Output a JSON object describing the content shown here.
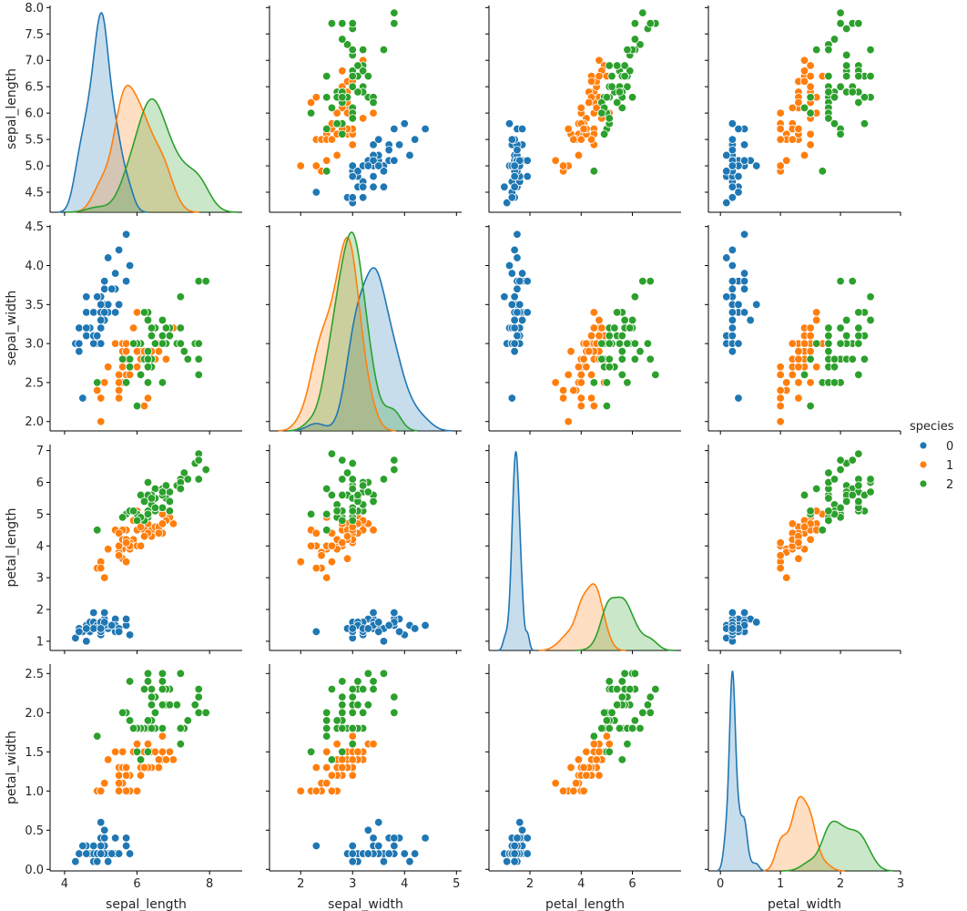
{
  "chart_data": {
    "type": "scatter",
    "title": "",
    "variables": [
      "sepal_length",
      "sepal_width",
      "petal_length",
      "petal_width"
    ],
    "hue": "species",
    "diag_kind": "kde",
    "grid": false,
    "legend": {
      "title": "species",
      "position": "right",
      "entries": [
        {
          "label": "0",
          "color": "#1f77b4"
        },
        {
          "label": "1",
          "color": "#ff7f0e"
        },
        {
          "label": "2",
          "color": "#2ca02c"
        }
      ]
    },
    "axes": {
      "sepal_length": {
        "label": "sepal_length",
        "lim": [
          3.6,
          8.9
        ],
        "ylim": [
          4.12,
          8.04
        ],
        "xticks": [
          "4",
          "6",
          "8"
        ],
        "xtick_values": [
          4,
          6,
          8
        ],
        "yticks": [
          "4.5",
          "5.0",
          "5.5",
          "6.0",
          "6.5",
          "7.0",
          "7.5",
          "8.0"
        ],
        "ytick_values": [
          4.5,
          5.0,
          5.5,
          6.0,
          6.5,
          7.0,
          7.5,
          8.0
        ]
      },
      "sepal_width": {
        "label": "sepal_width",
        "lim": [
          1.4,
          5.1
        ],
        "ylim": [
          1.88,
          4.52
        ],
        "xticks": [
          "2",
          "3",
          "4",
          "5"
        ],
        "xtick_values": [
          2,
          3,
          4,
          5
        ],
        "yticks": [
          "2.0",
          "2.5",
          "3.0",
          "3.5",
          "4.0",
          "4.5"
        ],
        "ytick_values": [
          2.0,
          2.5,
          3.0,
          3.5,
          4.0,
          4.5
        ]
      },
      "petal_length": {
        "label": "petal_length",
        "lim": [
          0.4,
          7.9
        ],
        "ylim": [
          0.71,
          7.19
        ],
        "xticks": [
          "2",
          "4",
          "6"
        ],
        "xtick_values": [
          2,
          4,
          6
        ],
        "yticks": [
          "1",
          "2",
          "3",
          "4",
          "5",
          "6",
          "7"
        ],
        "ytick_values": [
          1,
          2,
          3,
          4,
          5,
          6,
          7
        ]
      },
      "petal_width": {
        "label": "petal_width",
        "lim": [
          -0.2,
          3.0
        ],
        "ylim": [
          -0.02,
          2.62
        ],
        "xticks": [
          "0",
          "1",
          "2",
          "3"
        ],
        "xtick_values": [
          0,
          1,
          2,
          3
        ],
        "yticks": [
          "0.0",
          "0.5",
          "1.0",
          "1.5",
          "2.0",
          "2.5"
        ],
        "ytick_values": [
          0.0,
          0.5,
          1.0,
          1.5,
          2.0,
          2.5
        ]
      }
    },
    "points": [
      [
        5.1,
        3.5,
        1.4,
        0.2,
        0
      ],
      [
        4.9,
        3.0,
        1.4,
        0.2,
        0
      ],
      [
        4.7,
        3.2,
        1.3,
        0.2,
        0
      ],
      [
        4.6,
        3.1,
        1.5,
        0.2,
        0
      ],
      [
        5.0,
        3.6,
        1.4,
        0.2,
        0
      ],
      [
        5.4,
        3.9,
        1.7,
        0.4,
        0
      ],
      [
        4.6,
        3.4,
        1.4,
        0.3,
        0
      ],
      [
        5.0,
        3.4,
        1.5,
        0.2,
        0
      ],
      [
        4.4,
        2.9,
        1.4,
        0.2,
        0
      ],
      [
        4.9,
        3.1,
        1.5,
        0.1,
        0
      ],
      [
        5.4,
        3.7,
        1.5,
        0.2,
        0
      ],
      [
        4.8,
        3.4,
        1.6,
        0.2,
        0
      ],
      [
        4.8,
        3.0,
        1.4,
        0.1,
        0
      ],
      [
        4.3,
        3.0,
        1.1,
        0.1,
        0
      ],
      [
        5.8,
        4.0,
        1.2,
        0.2,
        0
      ],
      [
        5.7,
        4.4,
        1.5,
        0.4,
        0
      ],
      [
        5.4,
        3.9,
        1.3,
        0.4,
        0
      ],
      [
        5.1,
        3.5,
        1.4,
        0.3,
        0
      ],
      [
        5.7,
        3.8,
        1.7,
        0.3,
        0
      ],
      [
        5.1,
        3.8,
        1.5,
        0.3,
        0
      ],
      [
        5.4,
        3.4,
        1.7,
        0.2,
        0
      ],
      [
        5.1,
        3.7,
        1.5,
        0.4,
        0
      ],
      [
        4.6,
        3.6,
        1.0,
        0.2,
        0
      ],
      [
        5.1,
        3.3,
        1.7,
        0.5,
        0
      ],
      [
        4.8,
        3.4,
        1.9,
        0.2,
        0
      ],
      [
        5.0,
        3.0,
        1.6,
        0.2,
        0
      ],
      [
        5.0,
        3.4,
        1.6,
        0.4,
        0
      ],
      [
        5.2,
        3.5,
        1.5,
        0.2,
        0
      ],
      [
        5.2,
        3.4,
        1.4,
        0.2,
        0
      ],
      [
        4.7,
        3.2,
        1.6,
        0.2,
        0
      ],
      [
        4.8,
        3.1,
        1.6,
        0.2,
        0
      ],
      [
        5.4,
        3.4,
        1.5,
        0.4,
        0
      ],
      [
        5.2,
        4.1,
        1.5,
        0.1,
        0
      ],
      [
        5.5,
        4.2,
        1.4,
        0.2,
        0
      ],
      [
        4.9,
        3.1,
        1.5,
        0.2,
        0
      ],
      [
        5.0,
        3.2,
        1.2,
        0.2,
        0
      ],
      [
        5.5,
        3.5,
        1.3,
        0.2,
        0
      ],
      [
        4.9,
        3.6,
        1.4,
        0.1,
        0
      ],
      [
        4.4,
        3.0,
        1.3,
        0.2,
        0
      ],
      [
        5.1,
        3.4,
        1.5,
        0.2,
        0
      ],
      [
        5.0,
        3.5,
        1.3,
        0.3,
        0
      ],
      [
        4.5,
        2.3,
        1.3,
        0.3,
        0
      ],
      [
        4.4,
        3.2,
        1.3,
        0.2,
        0
      ],
      [
        5.0,
        3.5,
        1.6,
        0.6,
        0
      ],
      [
        5.1,
        3.8,
        1.9,
        0.4,
        0
      ],
      [
        4.8,
        3.0,
        1.4,
        0.3,
        0
      ],
      [
        5.1,
        3.8,
        1.6,
        0.2,
        0
      ],
      [
        4.6,
        3.2,
        1.4,
        0.2,
        0
      ],
      [
        5.3,
        3.7,
        1.5,
        0.2,
        0
      ],
      [
        5.0,
        3.3,
        1.4,
        0.2,
        0
      ],
      [
        7.0,
        3.2,
        4.7,
        1.4,
        1
      ],
      [
        6.4,
        3.2,
        4.5,
        1.5,
        1
      ],
      [
        6.9,
        3.1,
        4.9,
        1.5,
        1
      ],
      [
        5.5,
        2.3,
        4.0,
        1.3,
        1
      ],
      [
        6.5,
        2.8,
        4.6,
        1.5,
        1
      ],
      [
        5.7,
        2.8,
        4.5,
        1.3,
        1
      ],
      [
        6.3,
        3.3,
        4.7,
        1.6,
        1
      ],
      [
        4.9,
        2.4,
        3.3,
        1.0,
        1
      ],
      [
        6.6,
        2.9,
        4.6,
        1.3,
        1
      ],
      [
        5.2,
        2.7,
        3.9,
        1.4,
        1
      ],
      [
        5.0,
        2.0,
        3.5,
        1.0,
        1
      ],
      [
        5.9,
        3.0,
        4.2,
        1.5,
        1
      ],
      [
        6.0,
        2.2,
        4.0,
        1.0,
        1
      ],
      [
        6.1,
        2.9,
        4.7,
        1.4,
        1
      ],
      [
        5.6,
        2.9,
        3.6,
        1.3,
        1
      ],
      [
        6.7,
        3.1,
        4.4,
        1.4,
        1
      ],
      [
        5.6,
        3.0,
        4.5,
        1.5,
        1
      ],
      [
        5.8,
        2.7,
        4.1,
        1.0,
        1
      ],
      [
        6.2,
        2.2,
        4.5,
        1.5,
        1
      ],
      [
        5.6,
        2.5,
        3.9,
        1.1,
        1
      ],
      [
        5.9,
        3.2,
        4.8,
        1.8,
        1
      ],
      [
        6.1,
        2.8,
        4.0,
        1.3,
        1
      ],
      [
        6.3,
        2.5,
        4.9,
        1.5,
        1
      ],
      [
        6.1,
        2.8,
        4.7,
        1.2,
        1
      ],
      [
        6.4,
        2.9,
        4.3,
        1.3,
        1
      ],
      [
        6.6,
        3.0,
        4.4,
        1.4,
        1
      ],
      [
        6.8,
        2.8,
        4.8,
        1.4,
        1
      ],
      [
        6.7,
        3.0,
        5.0,
        1.7,
        1
      ],
      [
        6.0,
        2.9,
        4.5,
        1.5,
        1
      ],
      [
        5.7,
        2.6,
        3.5,
        1.0,
        1
      ],
      [
        5.5,
        2.4,
        3.8,
        1.1,
        1
      ],
      [
        5.5,
        2.4,
        3.7,
        1.0,
        1
      ],
      [
        5.8,
        2.7,
        3.9,
        1.2,
        1
      ],
      [
        6.0,
        2.7,
        5.1,
        1.6,
        1
      ],
      [
        5.4,
        3.0,
        4.5,
        1.5,
        1
      ],
      [
        6.0,
        3.4,
        4.5,
        1.6,
        1
      ],
      [
        6.7,
        3.1,
        4.7,
        1.5,
        1
      ],
      [
        6.3,
        2.3,
        4.4,
        1.3,
        1
      ],
      [
        5.6,
        3.0,
        4.1,
        1.3,
        1
      ],
      [
        5.5,
        2.5,
        4.0,
        1.3,
        1
      ],
      [
        5.5,
        2.6,
        4.4,
        1.2,
        1
      ],
      [
        6.1,
        3.0,
        4.6,
        1.4,
        1
      ],
      [
        5.8,
        2.6,
        4.0,
        1.2,
        1
      ],
      [
        5.0,
        2.3,
        3.3,
        1.0,
        1
      ],
      [
        5.6,
        2.7,
        4.2,
        1.3,
        1
      ],
      [
        5.7,
        3.0,
        4.2,
        1.2,
        1
      ],
      [
        5.7,
        2.9,
        4.2,
        1.3,
        1
      ],
      [
        6.2,
        2.9,
        4.3,
        1.3,
        1
      ],
      [
        5.1,
        2.5,
        3.0,
        1.1,
        1
      ],
      [
        5.7,
        2.8,
        4.1,
        1.3,
        1
      ],
      [
        6.3,
        3.3,
        6.0,
        2.5,
        2
      ],
      [
        5.8,
        2.7,
        5.1,
        1.9,
        2
      ],
      [
        7.1,
        3.0,
        5.9,
        2.1,
        2
      ],
      [
        6.3,
        2.9,
        5.6,
        1.8,
        2
      ],
      [
        6.5,
        3.0,
        5.8,
        2.2,
        2
      ],
      [
        7.6,
        3.0,
        6.6,
        2.1,
        2
      ],
      [
        4.9,
        2.5,
        4.5,
        1.7,
        2
      ],
      [
        7.3,
        2.9,
        6.3,
        1.8,
        2
      ],
      [
        6.7,
        2.5,
        5.8,
        1.8,
        2
      ],
      [
        7.2,
        3.6,
        6.1,
        2.5,
        2
      ],
      [
        6.5,
        3.2,
        5.1,
        2.0,
        2
      ],
      [
        6.4,
        2.7,
        5.3,
        1.9,
        2
      ],
      [
        6.8,
        3.0,
        5.5,
        2.1,
        2
      ],
      [
        5.7,
        2.5,
        5.0,
        2.0,
        2
      ],
      [
        5.8,
        2.8,
        5.1,
        2.4,
        2
      ],
      [
        6.4,
        3.2,
        5.3,
        2.3,
        2
      ],
      [
        6.5,
        3.0,
        5.5,
        1.8,
        2
      ],
      [
        7.7,
        3.8,
        6.7,
        2.2,
        2
      ],
      [
        7.7,
        2.6,
        6.9,
        2.3,
        2
      ],
      [
        6.0,
        2.2,
        5.0,
        1.5,
        2
      ],
      [
        6.9,
        3.2,
        5.7,
        2.3,
        2
      ],
      [
        5.6,
        2.8,
        4.9,
        2.0,
        2
      ],
      [
        7.7,
        2.8,
        6.7,
        2.0,
        2
      ],
      [
        6.3,
        2.7,
        4.9,
        1.8,
        2
      ],
      [
        6.7,
        3.3,
        5.7,
        2.1,
        2
      ],
      [
        7.2,
        3.2,
        6.0,
        1.8,
        2
      ],
      [
        6.2,
        2.8,
        4.8,
        1.8,
        2
      ],
      [
        6.1,
        3.0,
        4.9,
        1.8,
        2
      ],
      [
        6.4,
        2.8,
        5.6,
        2.1,
        2
      ],
      [
        7.2,
        3.0,
        5.8,
        1.6,
        2
      ],
      [
        7.4,
        2.8,
        6.1,
        1.9,
        2
      ],
      [
        7.9,
        3.8,
        6.4,
        2.0,
        2
      ],
      [
        6.4,
        2.8,
        5.6,
        2.2,
        2
      ],
      [
        6.3,
        2.8,
        5.1,
        1.5,
        2
      ],
      [
        6.1,
        2.6,
        5.6,
        1.4,
        2
      ],
      [
        7.7,
        3.0,
        6.1,
        2.3,
        2
      ],
      [
        6.3,
        3.4,
        5.6,
        2.4,
        2
      ],
      [
        6.4,
        3.1,
        5.5,
        1.8,
        2
      ],
      [
        6.0,
        3.0,
        4.8,
        1.8,
        2
      ],
      [
        6.9,
        3.1,
        5.4,
        2.1,
        2
      ],
      [
        6.7,
        3.1,
        5.6,
        2.4,
        2
      ],
      [
        6.9,
        3.1,
        5.1,
        2.3,
        2
      ],
      [
        5.8,
        2.7,
        5.1,
        1.9,
        2
      ],
      [
        6.8,
        3.2,
        5.9,
        2.3,
        2
      ],
      [
        6.7,
        3.3,
        5.7,
        2.5,
        2
      ],
      [
        6.7,
        3.0,
        5.2,
        2.3,
        2
      ],
      [
        6.3,
        2.5,
        5.0,
        1.9,
        2
      ],
      [
        6.5,
        3.0,
        5.2,
        2.0,
        2
      ],
      [
        6.2,
        3.4,
        5.4,
        2.3,
        2
      ],
      [
        5.9,
        3.0,
        5.1,
        1.8,
        2
      ]
    ]
  }
}
